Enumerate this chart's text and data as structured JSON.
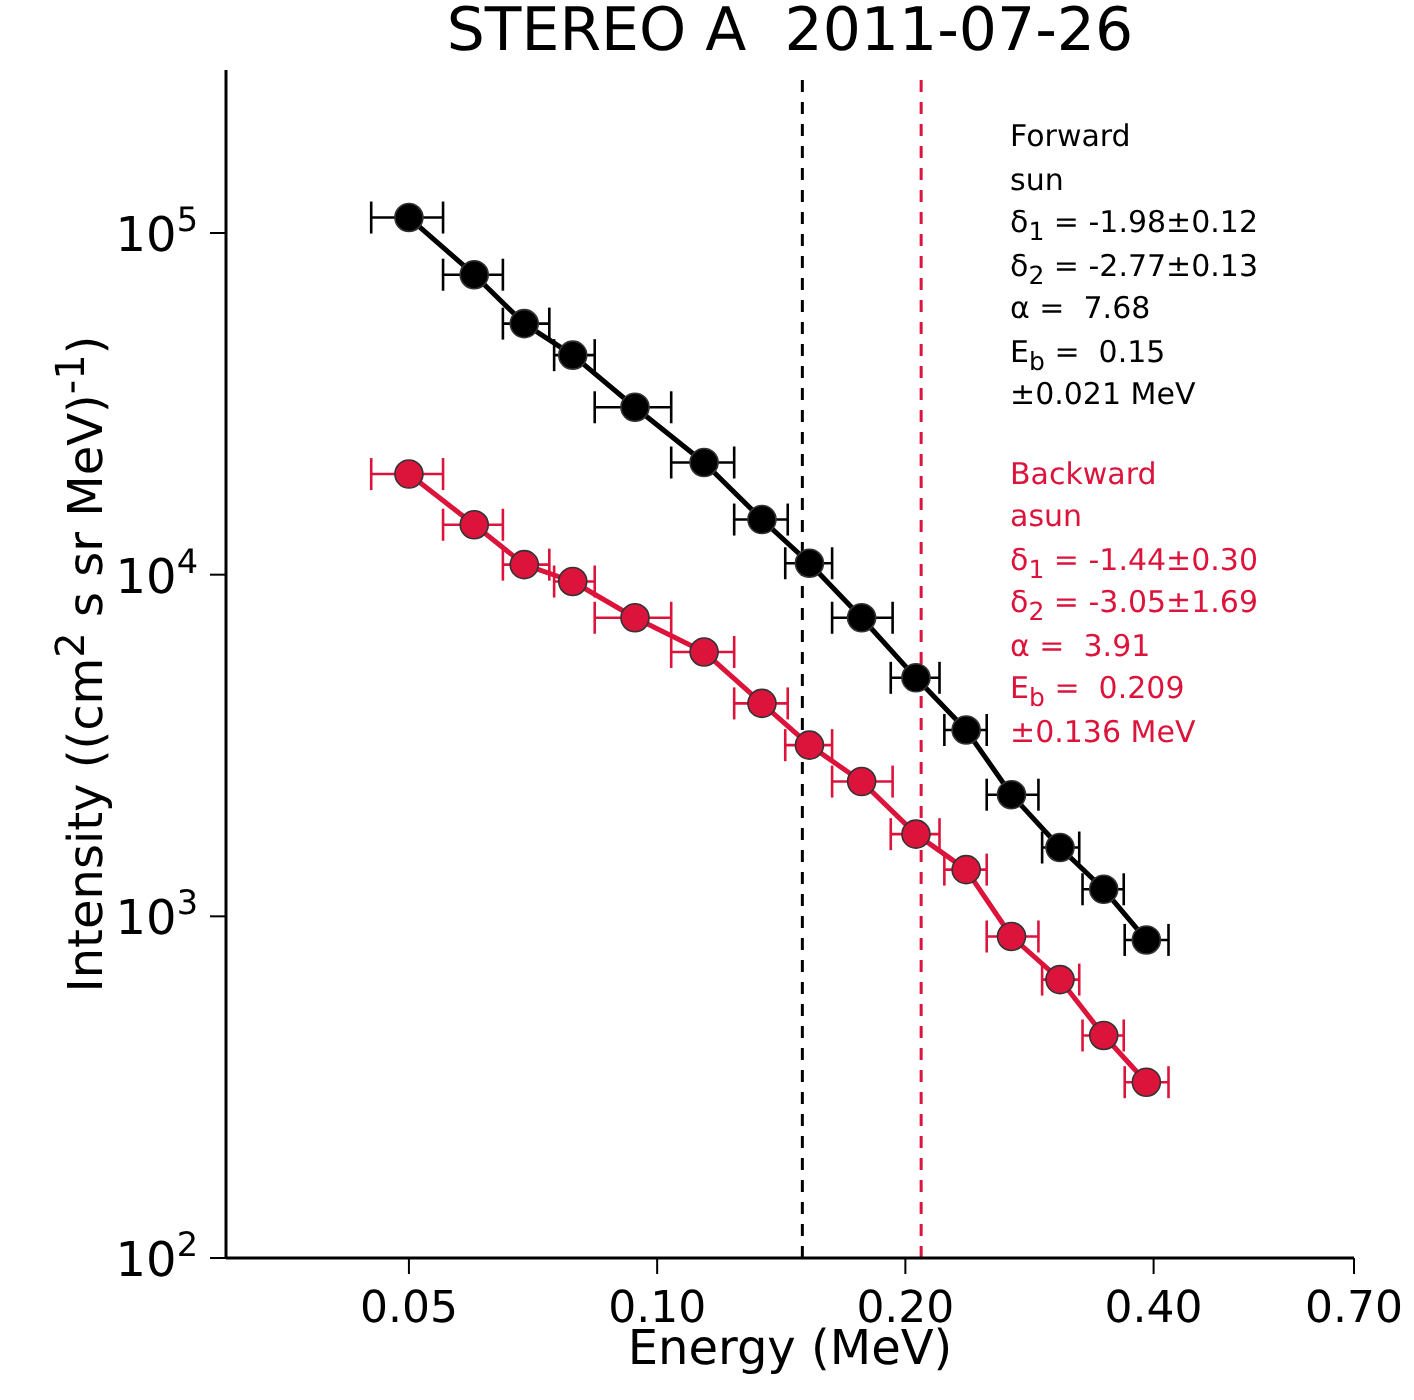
{
  "chart_data": {
    "type": "line",
    "title": "STEREO A  2011-07-26",
    "xlabel": "Energy (MeV)",
    "ylabel": "Intensity ((cm$^{2}$ s sr MeV)$^{-1}$)",
    "log": "xy",
    "marker": "circle",
    "line_style": "solid",
    "grid": false,
    "legend": false,
    "xlim": [
      0.03,
      0.7
    ],
    "xticks": [
      {
        "value": 0.05,
        "label": "0.05"
      },
      {
        "value": 0.1,
        "label": "0.10"
      },
      {
        "value": 0.2,
        "label": "0.20"
      },
      {
        "value": 0.4,
        "label": "0.40"
      },
      {
        "value": 0.7,
        "label": "0.70"
      }
    ],
    "ylim": [
      100,
      300000
    ],
    "yticks": [
      {
        "value": 100,
        "label": "10$^{2}$"
      },
      {
        "value": 1000,
        "label": "10$^{3}$"
      },
      {
        "value": 10000,
        "label": "10$^{4}$"
      },
      {
        "value": 100000,
        "label": "10$^{5}$"
      }
    ],
    "x": [
      0.05,
      0.06,
      0.069,
      0.079,
      0.094,
      0.114,
      0.134,
      0.153,
      0.177,
      0.206,
      0.237,
      0.269,
      0.308,
      0.348,
      0.392
    ],
    "series": [
      {
        "color": "#000000",
        "values": [
          111000,
          75500,
          54300,
          43900,
          30900,
          21300,
          14500,
          10800,
          7480,
          4990,
          3510,
          2270,
          1590,
          1200,
          853
        ],
        "xerrors": [
          [
            0.045,
            0.055
          ],
          [
            0.055,
            0.065
          ],
          [
            0.065,
            0.074
          ],
          [
            0.075,
            0.084
          ],
          [
            0.084,
            0.104
          ],
          [
            0.104,
            0.124
          ],
          [
            0.124,
            0.144
          ],
          [
            0.143,
            0.163
          ],
          [
            0.163,
            0.193
          ],
          [
            0.192,
            0.22
          ],
          [
            0.223,
            0.251
          ],
          [
            0.251,
            0.29
          ],
          [
            0.293,
            0.325
          ],
          [
            0.328,
            0.368
          ],
          [
            0.369,
            0.417
          ]
        ]
      },
      {
        "color": "#dc143c",
        "values": [
          19700,
          14000,
          10700,
          9550,
          7480,
          5940,
          4200,
          3170,
          2480,
          1740,
          1370,
          873,
          653,
          448,
          327
        ],
        "xerrors": [
          [
            0.045,
            0.055
          ],
          [
            0.055,
            0.065
          ],
          [
            0.065,
            0.074
          ],
          [
            0.075,
            0.084
          ],
          [
            0.084,
            0.104
          ],
          [
            0.104,
            0.124
          ],
          [
            0.124,
            0.144
          ],
          [
            0.143,
            0.163
          ],
          [
            0.163,
            0.193
          ],
          [
            0.192,
            0.22
          ],
          [
            0.223,
            0.251
          ],
          [
            0.251,
            0.29
          ],
          [
            0.293,
            0.325
          ],
          [
            0.328,
            0.368
          ],
          [
            0.369,
            0.417
          ]
        ]
      }
    ],
    "ref_lines": [
      {
        "axis": "x",
        "value": 0.15,
        "color": "#000000",
        "line_style": "dashed"
      },
      {
        "axis": "x",
        "value": 0.209,
        "color": "#dc143c",
        "line_style": "dashed"
      }
    ],
    "annotations": [
      "Forward\nsun\nδ$_{1}$ = -1.98±0.12\nδ$_{2}$ = -2.77±0.13\nα =  7.68\nE$_{b}$ =  0.15\n±0.021 MeV",
      "Backward\nasun\nδ$_{1}$ = -1.44±0.30\nδ$_{2}$ = -3.05±1.69\nα =  3.91\nE$_{b}$ =  0.209\n±0.136 MeV"
    ]
  }
}
